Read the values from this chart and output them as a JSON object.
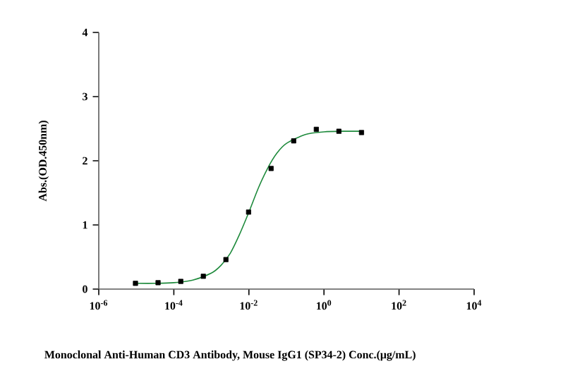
{
  "chart_data": {
    "type": "scatter",
    "xlabel": "Monoclonal Anti-Human CD3 Antibody, Mouse IgG1 (SP34-2) Conc.(μg/mL)",
    "ylabel": "Abs.(OD.450nm)",
    "log": "x",
    "xlim": [
      1e-06,
      10000
    ],
    "ylim": [
      0,
      4
    ],
    "xticks": [
      {
        "value": 1e-06,
        "label": "10$^{-6}$"
      },
      {
        "value": 0.0001,
        "label": "10$^{-4}$"
      },
      {
        "value": 0.01,
        "label": "10$^{-2}$"
      },
      {
        "value": 1,
        "label": "10$^{0}$"
      },
      {
        "value": 100,
        "label": "10$^{2}$"
      },
      {
        "value": 10000,
        "label": "10$^{4}$"
      }
    ],
    "yticks": [
      0,
      1,
      2,
      3,
      4
    ],
    "grid": false,
    "series": [
      {
        "marker": "square",
        "color": "#000000",
        "x": [
          9.5e-06,
          3.8e-05,
          0.000153,
          0.00061,
          0.00244,
          0.0098,
          0.039,
          0.156,
          0.625,
          2.5,
          10
        ],
        "values": [
          0.09,
          0.1,
          0.12,
          0.2,
          0.46,
          1.2,
          1.88,
          2.31,
          2.49,
          2.46,
          2.44
        ]
      },
      {
        "type": "line",
        "marker": "none",
        "line_style": "solid",
        "color": "#1e8a3c",
        "x": [
          1e-05,
          3.2e-05,
          0.0001,
          0.00032,
          0.001,
          0.0018,
          0.0032,
          0.0056,
          0.01,
          0.018,
          0.032,
          0.056,
          0.1,
          0.32,
          1,
          3.2,
          10
        ],
        "values": [
          0.09,
          0.09,
          0.1,
          0.14,
          0.25,
          0.37,
          0.56,
          0.85,
          1.2,
          1.58,
          1.89,
          2.12,
          2.27,
          2.41,
          2.45,
          2.46,
          2.46
        ]
      }
    ]
  }
}
